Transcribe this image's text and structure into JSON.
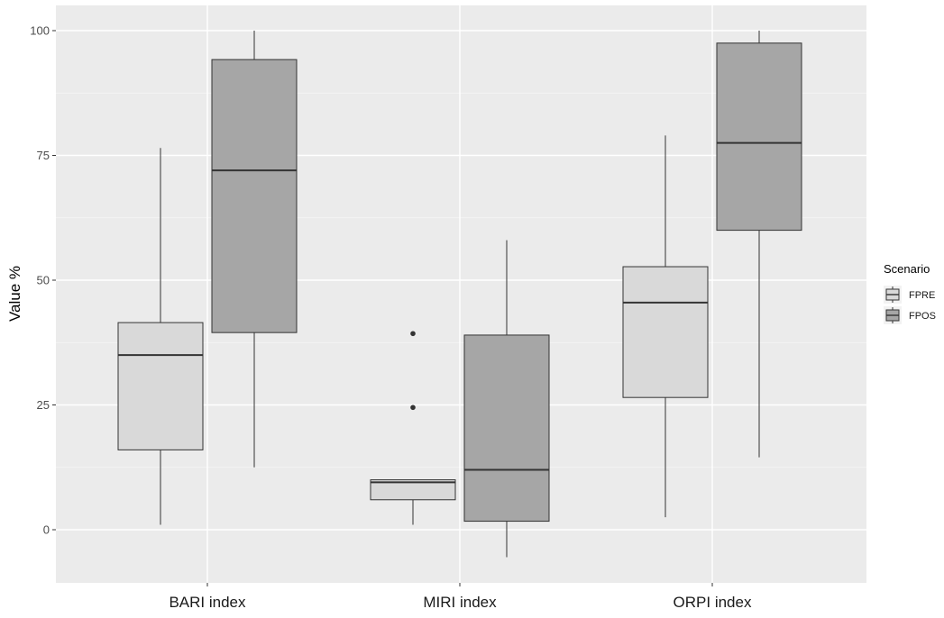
{
  "chart_data": {
    "type": "boxplot",
    "title": "",
    "xlabel": "",
    "ylabel": "Value %",
    "ylim": [
      -10,
      103
    ],
    "yticks": [
      0,
      25,
      50,
      75,
      100
    ],
    "ytick_labels": [
      "0",
      "25",
      "50",
      "75",
      "100"
    ],
    "categories": [
      "BARI index",
      "MIRI index",
      "ORPI index"
    ],
    "grid": true,
    "legend": {
      "title": "Scenario",
      "placement": "right"
    },
    "series": [
      {
        "name": "FPRE",
        "color": "#d9d9d9",
        "boxes": [
          {
            "whisker_low": 1,
            "q1": 16,
            "median": 35,
            "q3": 41.5,
            "whisker_high": 76.5,
            "outliers": []
          },
          {
            "whisker_low": 1,
            "q1": 6,
            "median": 9.5,
            "q3": 10,
            "whisker_high": 10,
            "outliers": [
              24.5,
              39.3
            ]
          },
          {
            "whisker_low": 2.5,
            "q1": 26.5,
            "median": 45.5,
            "q3": 52.7,
            "whisker_high": 79,
            "outliers": []
          }
        ]
      },
      {
        "name": "FPOS",
        "color": "#a6a6a6",
        "boxes": [
          {
            "whisker_low": 12.5,
            "q1": 39.5,
            "median": 72,
            "q3": 94.2,
            "whisker_high": 100,
            "outliers": []
          },
          {
            "whisker_low": -5.5,
            "q1": 1.7,
            "median": 12,
            "q3": 39,
            "whisker_high": 58,
            "outliers": []
          },
          {
            "whisker_low": 14.5,
            "q1": 60,
            "median": 77.5,
            "q3": 97.5,
            "whisker_high": 100,
            "outliers": []
          }
        ]
      }
    ]
  }
}
